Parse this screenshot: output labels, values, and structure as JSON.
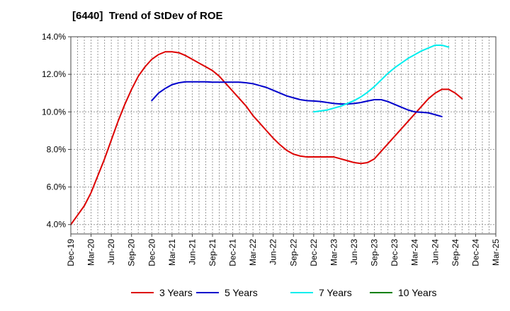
{
  "chart_data": {
    "type": "line",
    "title": "[6440]  Trend of StDev of ROE",
    "xlabel": "",
    "ylabel": "",
    "x_ticks": [
      "Dec-19",
      "Mar-20",
      "Jun-20",
      "Sep-20",
      "Dec-20",
      "Mar-21",
      "Jun-21",
      "Sep-21",
      "Dec-21",
      "Mar-22",
      "Jun-22",
      "Sep-22",
      "Dec-22",
      "Mar-23",
      "Jun-23",
      "Sep-23",
      "Dec-23",
      "Mar-24",
      "Jun-24",
      "Sep-24",
      "Dec-24",
      "Mar-25"
    ],
    "y_ticks": [
      "4.0%",
      "6.0%",
      "8.0%",
      "10.0%",
      "12.0%",
      "14.0%"
    ],
    "y_tick_values": [
      4,
      6,
      8,
      10,
      12,
      14
    ],
    "ylim": [
      3.5,
      14.0
    ],
    "grid": true,
    "legend_position": "bottom",
    "series": [
      {
        "name": "3 Years",
        "color": "#dd0000",
        "points": [
          [
            "Dec-19",
            4.0
          ],
          [
            "Jan-20",
            4.5
          ],
          [
            "Feb-20",
            5.0
          ],
          [
            "Mar-20",
            5.7
          ],
          [
            "Apr-20",
            6.6
          ],
          [
            "May-20",
            7.5
          ],
          [
            "Jun-20",
            8.5
          ],
          [
            "Jul-20",
            9.5
          ],
          [
            "Aug-20",
            10.4
          ],
          [
            "Sep-20",
            11.2
          ],
          [
            "Oct-20",
            11.9
          ],
          [
            "Nov-20",
            12.4
          ],
          [
            "Dec-20",
            12.8
          ],
          [
            "Jan-21",
            13.05
          ],
          [
            "Feb-21",
            13.2
          ],
          [
            "Mar-21",
            13.2
          ],
          [
            "Apr-21",
            13.15
          ],
          [
            "May-21",
            13.0
          ],
          [
            "Jun-21",
            12.8
          ],
          [
            "Jul-21",
            12.6
          ],
          [
            "Aug-21",
            12.4
          ],
          [
            "Sep-21",
            12.2
          ],
          [
            "Oct-21",
            11.9
          ],
          [
            "Nov-21",
            11.5
          ],
          [
            "Dec-21",
            11.1
          ],
          [
            "Jan-22",
            10.7
          ],
          [
            "Feb-22",
            10.3
          ],
          [
            "Mar-22",
            9.8
          ],
          [
            "Apr-22",
            9.4
          ],
          [
            "May-22",
            9.0
          ],
          [
            "Jun-22",
            8.6
          ],
          [
            "Jul-22",
            8.25
          ],
          [
            "Aug-22",
            7.95
          ],
          [
            "Sep-22",
            7.75
          ],
          [
            "Oct-22",
            7.65
          ],
          [
            "Nov-22",
            7.6
          ],
          [
            "Dec-22",
            7.6
          ],
          [
            "Jan-23",
            7.6
          ],
          [
            "Feb-23",
            7.6
          ],
          [
            "Mar-23",
            7.6
          ],
          [
            "Apr-23",
            7.5
          ],
          [
            "May-23",
            7.4
          ],
          [
            "Jun-23",
            7.3
          ],
          [
            "Jul-23",
            7.25
          ],
          [
            "Aug-23",
            7.3
          ],
          [
            "Sep-23",
            7.5
          ],
          [
            "Oct-23",
            7.9
          ],
          [
            "Nov-23",
            8.3
          ],
          [
            "Dec-23",
            8.7
          ],
          [
            "Jan-24",
            9.1
          ],
          [
            "Feb-24",
            9.5
          ],
          [
            "Mar-24",
            9.9
          ],
          [
            "Apr-24",
            10.3
          ],
          [
            "May-24",
            10.7
          ],
          [
            "Jun-24",
            11.0
          ],
          [
            "Jul-24",
            11.2
          ],
          [
            "Aug-24",
            11.2
          ],
          [
            "Sep-24",
            11.0
          ],
          [
            "Oct-24",
            10.7
          ]
        ]
      },
      {
        "name": "5 Years",
        "color": "#0000cc",
        "points": [
          [
            "Dec-20",
            10.6
          ],
          [
            "Jan-21",
            11.0
          ],
          [
            "Feb-21",
            11.25
          ],
          [
            "Mar-21",
            11.45
          ],
          [
            "Apr-21",
            11.55
          ],
          [
            "May-21",
            11.6
          ],
          [
            "Jun-21",
            11.6
          ],
          [
            "Jul-21",
            11.6
          ],
          [
            "Aug-21",
            11.6
          ],
          [
            "Sep-21",
            11.58
          ],
          [
            "Oct-21",
            11.58
          ],
          [
            "Nov-21",
            11.58
          ],
          [
            "Dec-21",
            11.58
          ],
          [
            "Jan-22",
            11.58
          ],
          [
            "Feb-22",
            11.55
          ],
          [
            "Mar-22",
            11.5
          ],
          [
            "Apr-22",
            11.4
          ],
          [
            "May-22",
            11.3
          ],
          [
            "Jun-22",
            11.15
          ],
          [
            "Jul-22",
            11.0
          ],
          [
            "Aug-22",
            10.85
          ],
          [
            "Sep-22",
            10.75
          ],
          [
            "Oct-22",
            10.65
          ],
          [
            "Nov-22",
            10.6
          ],
          [
            "Dec-22",
            10.58
          ],
          [
            "Jan-23",
            10.55
          ],
          [
            "Feb-23",
            10.5
          ],
          [
            "Mar-23",
            10.45
          ],
          [
            "Apr-23",
            10.42
          ],
          [
            "May-23",
            10.42
          ],
          [
            "Jun-23",
            10.45
          ],
          [
            "Jul-23",
            10.5
          ],
          [
            "Aug-23",
            10.58
          ],
          [
            "Sep-23",
            10.65
          ],
          [
            "Oct-23",
            10.65
          ],
          [
            "Nov-23",
            10.55
          ],
          [
            "Dec-23",
            10.4
          ],
          [
            "Jan-24",
            10.25
          ],
          [
            "Feb-24",
            10.1
          ],
          [
            "Mar-24",
            10.0
          ],
          [
            "Apr-24",
            9.98
          ],
          [
            "May-24",
            9.95
          ],
          [
            "Jun-24",
            9.85
          ],
          [
            "Jul-24",
            9.75
          ]
        ]
      },
      {
        "name": "7 Years",
        "color": "#00eeee",
        "points": [
          [
            "Dec-22",
            10.0
          ],
          [
            "Jan-23",
            10.05
          ],
          [
            "Feb-23",
            10.1
          ],
          [
            "Mar-23",
            10.2
          ],
          [
            "Apr-23",
            10.3
          ],
          [
            "May-23",
            10.45
          ],
          [
            "Jun-23",
            10.6
          ],
          [
            "Jul-23",
            10.8
          ],
          [
            "Aug-23",
            11.05
          ],
          [
            "Sep-23",
            11.35
          ],
          [
            "Oct-23",
            11.7
          ],
          [
            "Nov-23",
            12.05
          ],
          [
            "Dec-23",
            12.35
          ],
          [
            "Jan-24",
            12.6
          ],
          [
            "Feb-24",
            12.85
          ],
          [
            "Mar-24",
            13.05
          ],
          [
            "Apr-24",
            13.25
          ],
          [
            "May-24",
            13.4
          ],
          [
            "Jun-24",
            13.55
          ],
          [
            "Jul-24",
            13.55
          ],
          [
            "Aug-24",
            13.45
          ]
        ]
      },
      {
        "name": "10 Years",
        "color": "#008000",
        "points": []
      }
    ]
  }
}
